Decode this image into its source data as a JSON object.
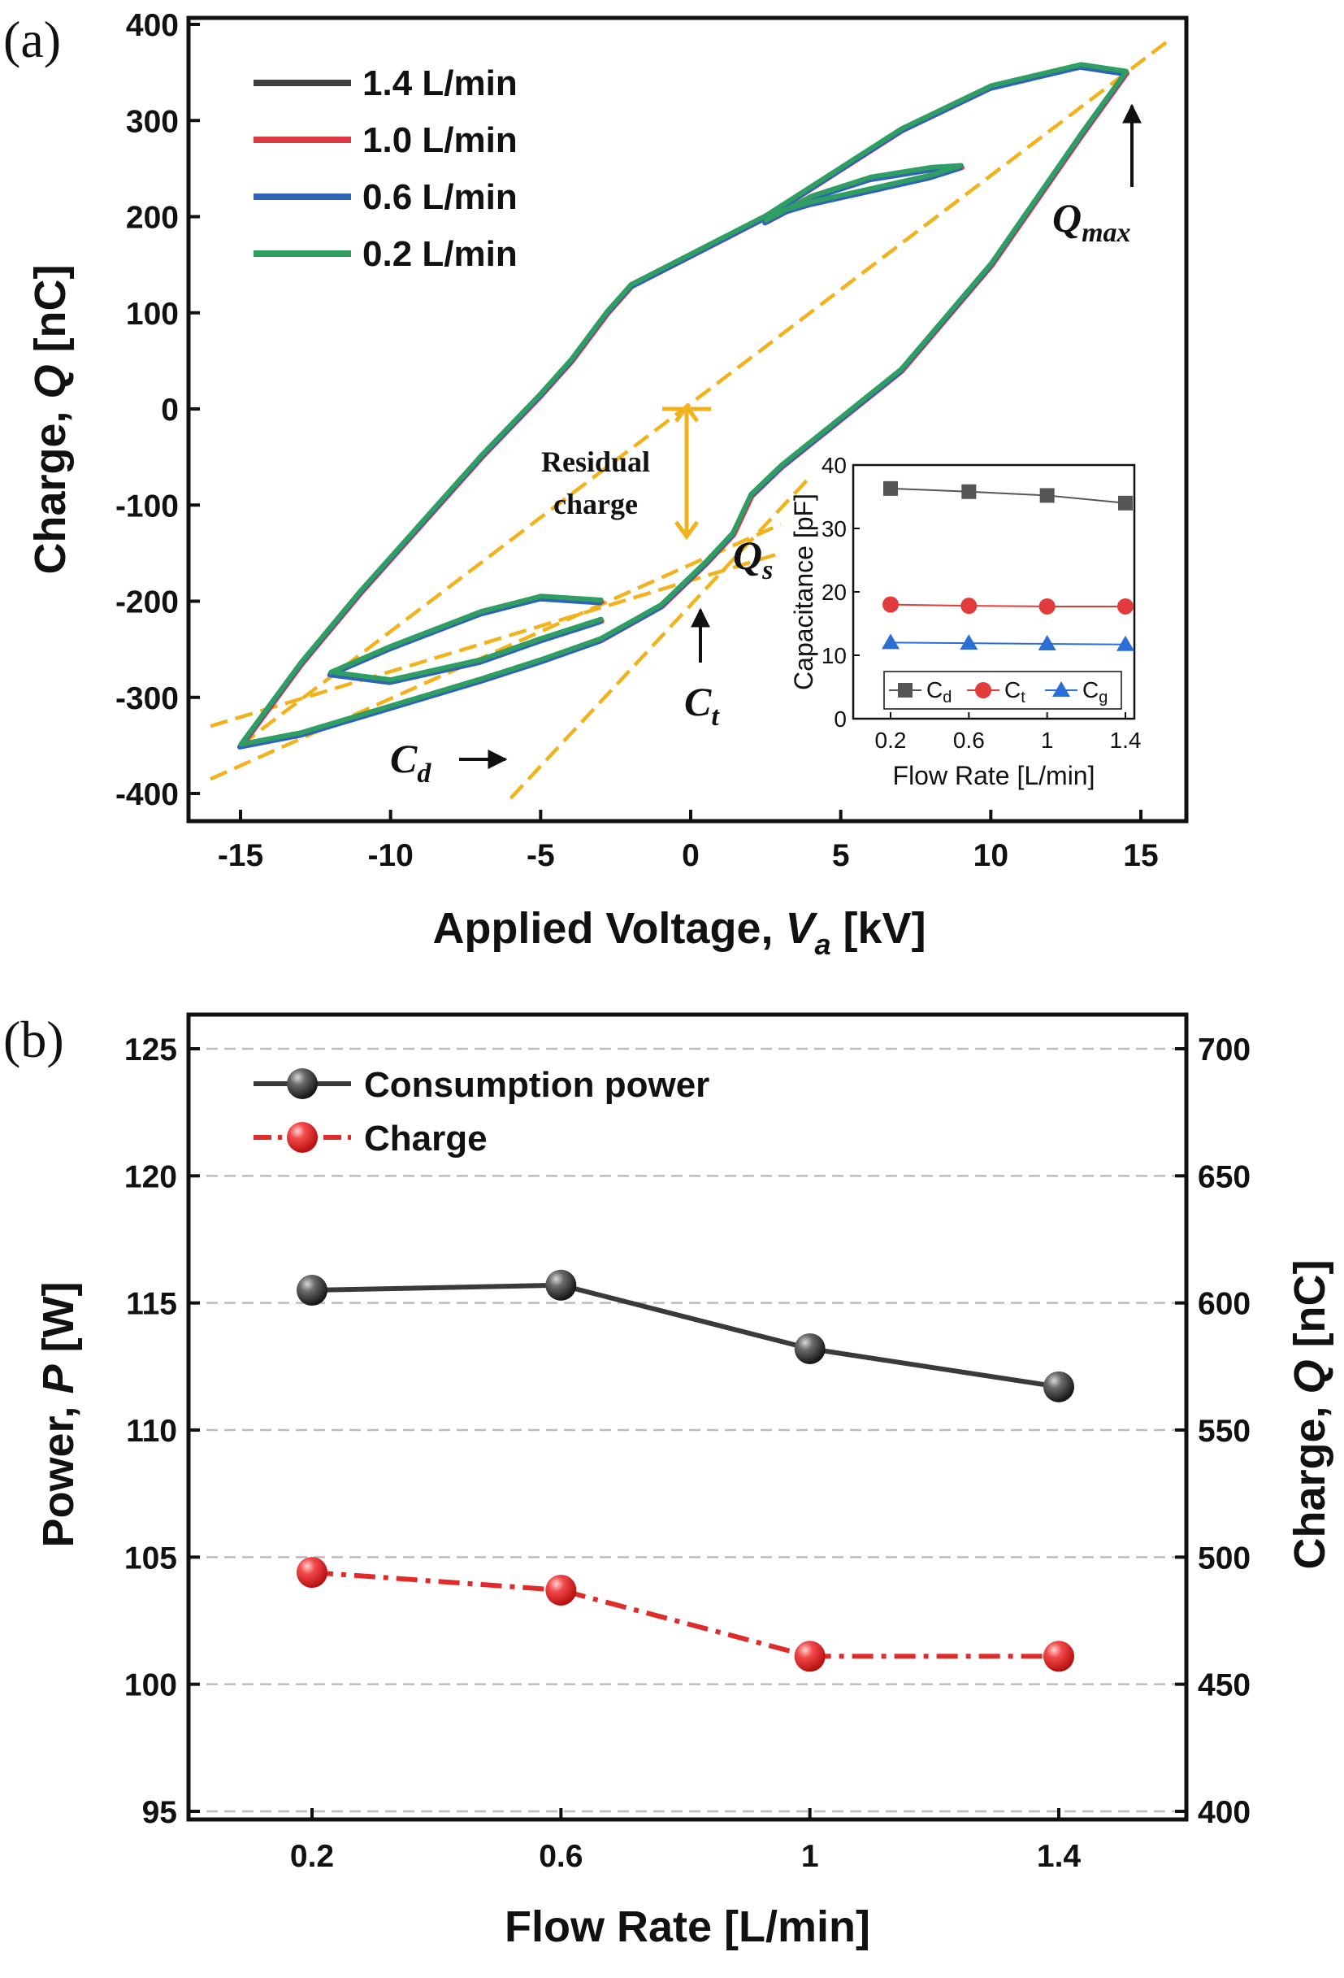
{
  "chart_data": [
    {
      "panel": "(a)",
      "type": "line",
      "xlabel_parts": [
        "Applied Voltage, ",
        "V",
        "a",
        " [kV]"
      ],
      "ylabel_parts": [
        "Charge, ",
        "Q",
        " [nC]"
      ],
      "xlim": [
        -16.5,
        16.5
      ],
      "ylim": [
        -405,
        405
      ],
      "xticks": [
        -15,
        -10,
        -5,
        0,
        5,
        10,
        15
      ],
      "yticks": [
        -400,
        -300,
        -200,
        -100,
        0,
        100,
        200,
        300,
        400
      ],
      "legend_position": "top-left",
      "series": [
        {
          "name": "1.4 L/min",
          "color": "#404040"
        },
        {
          "name": "1.0 L/min",
          "color": "#d93a3f"
        },
        {
          "name": "0.6 L/min",
          "color": "#2e63b7"
        },
        {
          "name": "0.2 L/min",
          "color": "#2f9e63"
        }
      ],
      "loop": {
        "lower_branch": [
          [
            -15,
            -350
          ],
          [
            -13,
            -338
          ],
          [
            -10,
            -310
          ],
          [
            -7,
            -282
          ],
          [
            -5,
            -262
          ],
          [
            -3,
            -240
          ],
          [
            -1,
            -205
          ],
          [
            0.5,
            -160
          ],
          [
            1.4,
            -130
          ],
          [
            2,
            -90
          ],
          [
            3,
            -60
          ],
          [
            5,
            -10
          ],
          [
            7,
            40
          ],
          [
            10,
            150
          ],
          [
            12,
            240
          ],
          [
            13,
            285
          ],
          [
            14.5,
            350
          ]
        ],
        "upper_branch": [
          [
            14.5,
            350
          ],
          [
            13,
            357
          ],
          [
            10,
            335
          ],
          [
            7,
            290
          ],
          [
            5,
            250
          ],
          [
            2.5,
            200
          ],
          [
            0,
            160
          ],
          [
            -2,
            128
          ],
          [
            -2.8,
            100
          ],
          [
            -4,
            50
          ],
          [
            -5,
            15
          ],
          [
            -7,
            -50
          ],
          [
            -9,
            -120
          ],
          [
            -11,
            -190
          ],
          [
            -13,
            -265
          ],
          [
            -15,
            -350
          ]
        ],
        "inner_upper_lobe": [
          [
            2.5,
            195
          ],
          [
            4,
            220
          ],
          [
            6,
            240
          ],
          [
            8,
            250
          ],
          [
            9,
            252
          ],
          [
            8,
            242
          ],
          [
            6,
            228
          ],
          [
            4,
            214
          ],
          [
            2.5,
            200
          ]
        ],
        "inner_lower_lobe": [
          [
            -3,
            -200
          ],
          [
            -5,
            -196
          ],
          [
            -7,
            -212
          ],
          [
            -10,
            -248
          ],
          [
            -12,
            -275
          ],
          [
            -10,
            -283
          ],
          [
            -7,
            -262
          ],
          [
            -5,
            -240
          ],
          [
            -3,
            -220
          ]
        ]
      },
      "guide_lines": [
        {
          "name": "C_t",
          "points": [
            [
              -6,
              -405
            ],
            [
              4,
              -70
            ]
          ]
        },
        {
          "name": "C_d upper",
          "points": [
            [
              -16,
              -330
            ],
            [
              3,
              -150
            ]
          ]
        },
        {
          "name": "C_d lower",
          "points": [
            [
              -16,
              -385
            ],
            [
              3,
              -120
            ]
          ]
        },
        {
          "name": "C_max line",
          "points": [
            [
              -15,
              -350
            ],
            [
              16,
              385
            ]
          ]
        }
      ],
      "guide_color": "#f2b21c",
      "annotations": [
        {
          "text": "Residual charge",
          "lines": [
            "Residual",
            "charge"
          ]
        },
        {
          "text": "Q_s",
          "base": "Q",
          "sub": "s"
        },
        {
          "text": "C_t",
          "base": "C",
          "sub": "t"
        },
        {
          "text": "C_d",
          "base": "C",
          "sub": "d"
        },
        {
          "text": "Q_max",
          "base": "Q",
          "sub": "max"
        }
      ],
      "inset": {
        "type": "line",
        "xlabel": "Flow Rate [L/min]",
        "ylabel": "Capacitance [pF]",
        "categories": [
          "0.2",
          "0.6",
          "1",
          "1.4"
        ],
        "ylim": [
          0,
          40
        ],
        "yticks": [
          0,
          10,
          20,
          30,
          40
        ],
        "legend_position": "bottom",
        "series": [
          {
            "name": "C_d",
            "label": "C",
            "sub": "d",
            "marker": "square",
            "color": "#555555",
            "values": [
              36.3,
              35.8,
              35.2,
              34.0
            ]
          },
          {
            "name": "C_t",
            "label": "C",
            "sub": "t",
            "marker": "circle",
            "color": "#e23b3b",
            "values": [
              18.0,
              17.8,
              17.7,
              17.7
            ]
          },
          {
            "name": "C_g",
            "label": "C",
            "sub": "g",
            "marker": "triangle",
            "color": "#2a6fd6",
            "values": [
              12.0,
              11.9,
              11.8,
              11.7
            ]
          }
        ]
      }
    },
    {
      "panel": "(b)",
      "type": "line",
      "xlabel": "Flow Rate [L/min]",
      "ylabel_left_parts": [
        "Power, ",
        "P",
        " [W]"
      ],
      "ylabel_right_parts": [
        "Charge, ",
        "Q",
        " [nC]"
      ],
      "categories": [
        "0.2",
        "0.6",
        "1",
        "1.4"
      ],
      "ylim_left": [
        94,
        126
      ],
      "ylim_right": [
        390,
        710
      ],
      "yticks_left": [
        95,
        100,
        105,
        110,
        115,
        120,
        125
      ],
      "yticks_right": [
        400,
        450,
        500,
        550,
        600,
        650,
        700
      ],
      "grid": "horizontal dashed",
      "legend_position": "top-left",
      "series": [
        {
          "name": "Consumption power",
          "axis": "left",
          "color": "#3a3a3a",
          "line_style": "solid",
          "values": [
            115.5,
            115.7,
            113.2,
            111.7
          ]
        },
        {
          "name": "Charge",
          "axis": "right",
          "color": "#e02b2b",
          "line_style": "dash-dot",
          "values": [
            494,
            487,
            461,
            461
          ]
        }
      ]
    }
  ]
}
